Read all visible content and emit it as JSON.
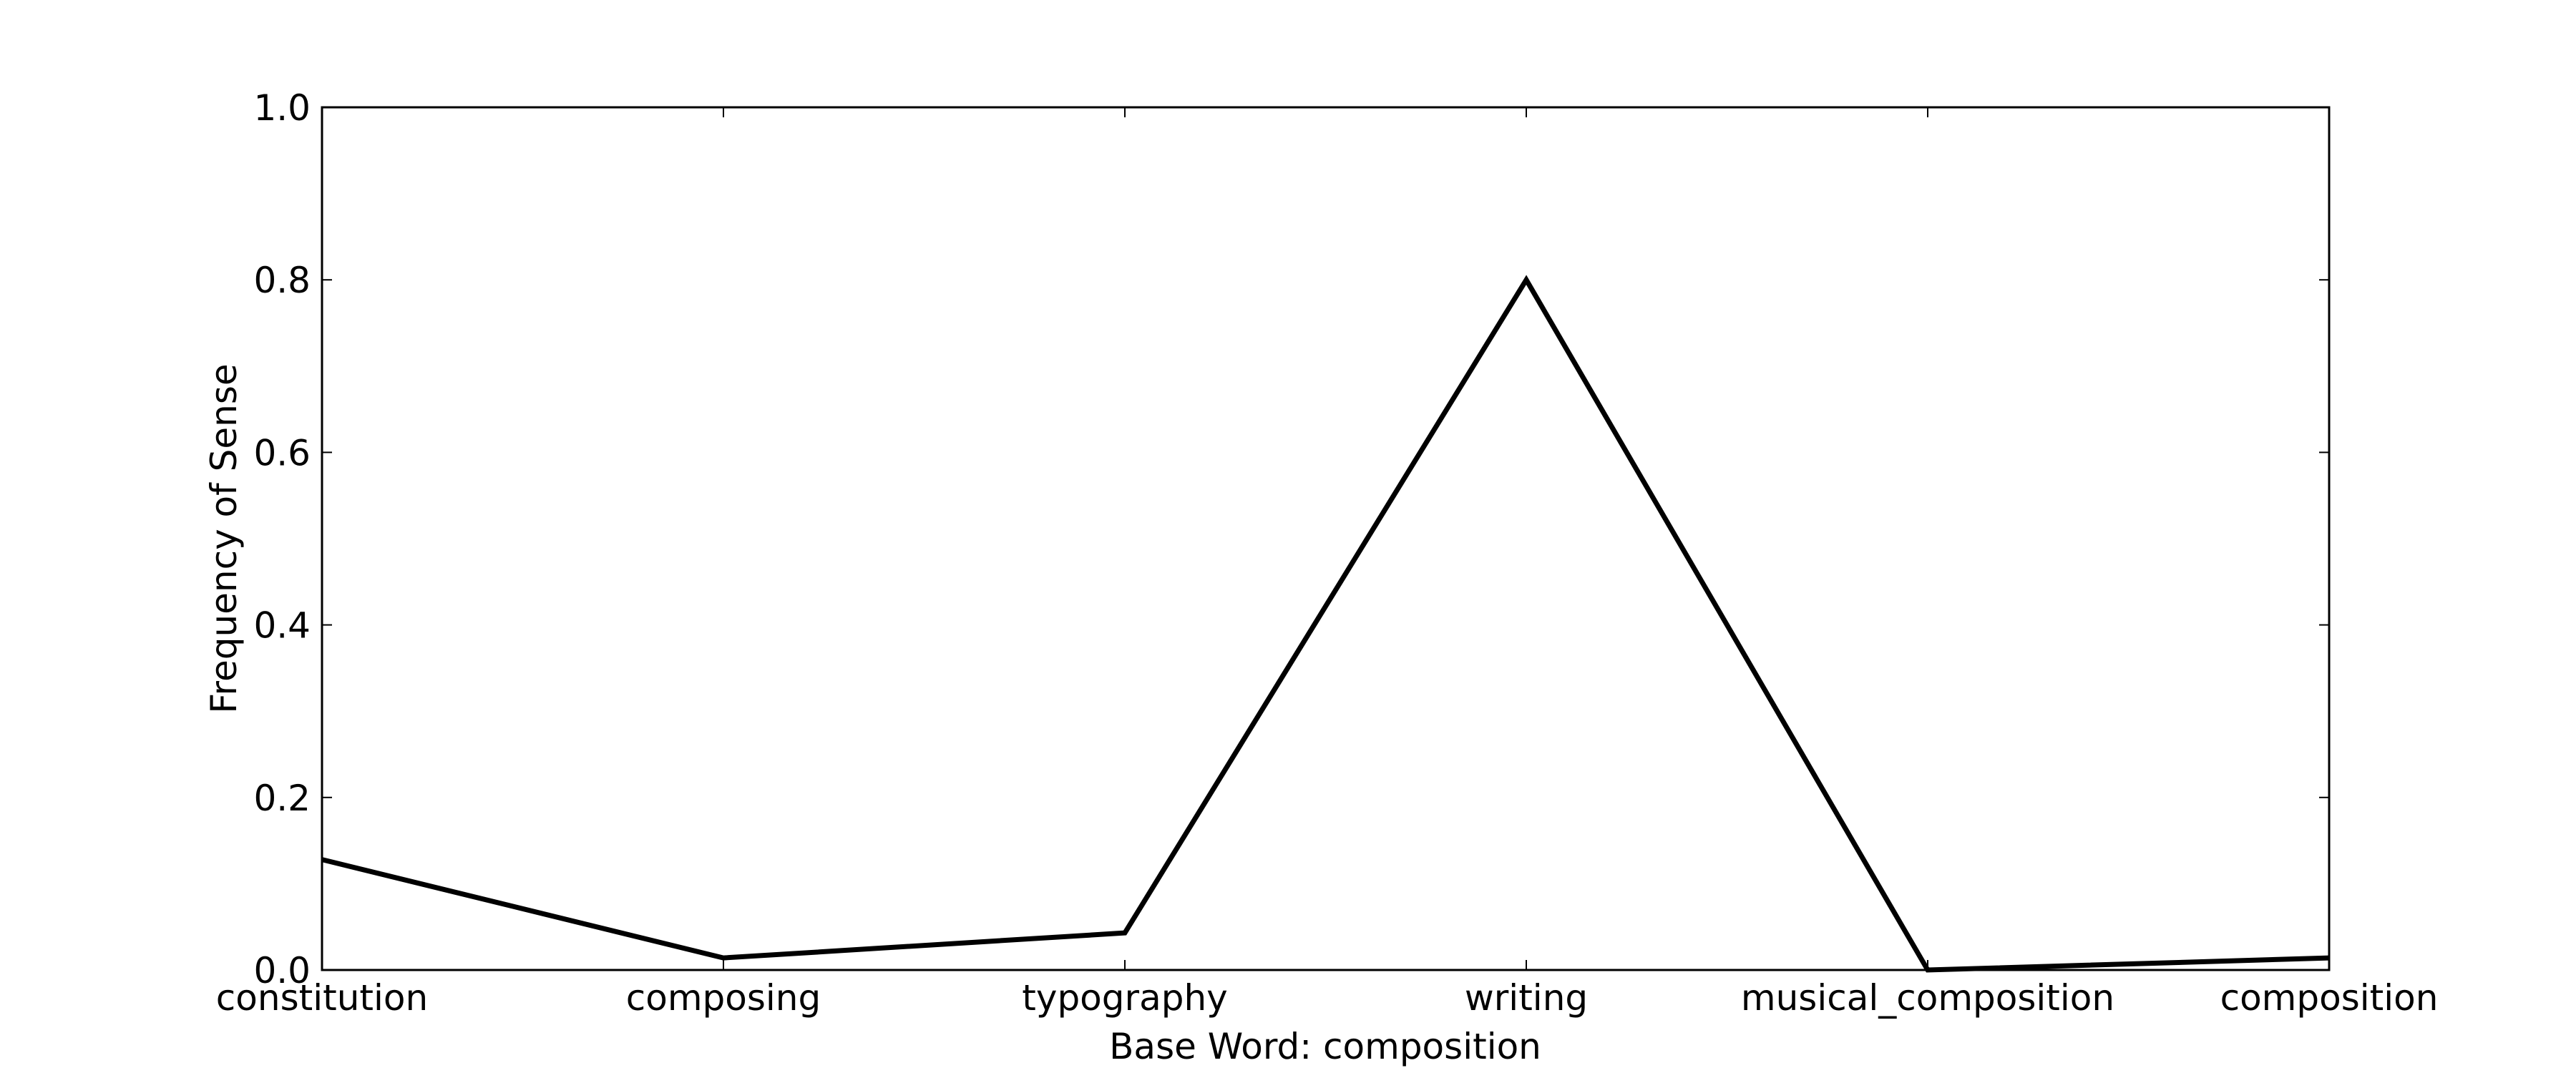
{
  "chart_data": {
    "type": "line",
    "title": "",
    "xlabel": "Base Word: composition",
    "ylabel": "Frequency of Sense",
    "categories": [
      "constitution",
      "composing",
      "typography",
      "writing",
      "musical_composition",
      "composition"
    ],
    "series": [
      {
        "values": [
          0.128,
          0.014,
          0.043,
          0.8,
          0.0,
          0.014
        ],
        "color": "#000000"
      }
    ],
    "yticks": [
      "0.0",
      "0.2",
      "0.4",
      "0.6",
      "0.8",
      "1.0"
    ],
    "ylim": [
      0,
      1.0
    ],
    "grid": false,
    "legend": "none"
  }
}
